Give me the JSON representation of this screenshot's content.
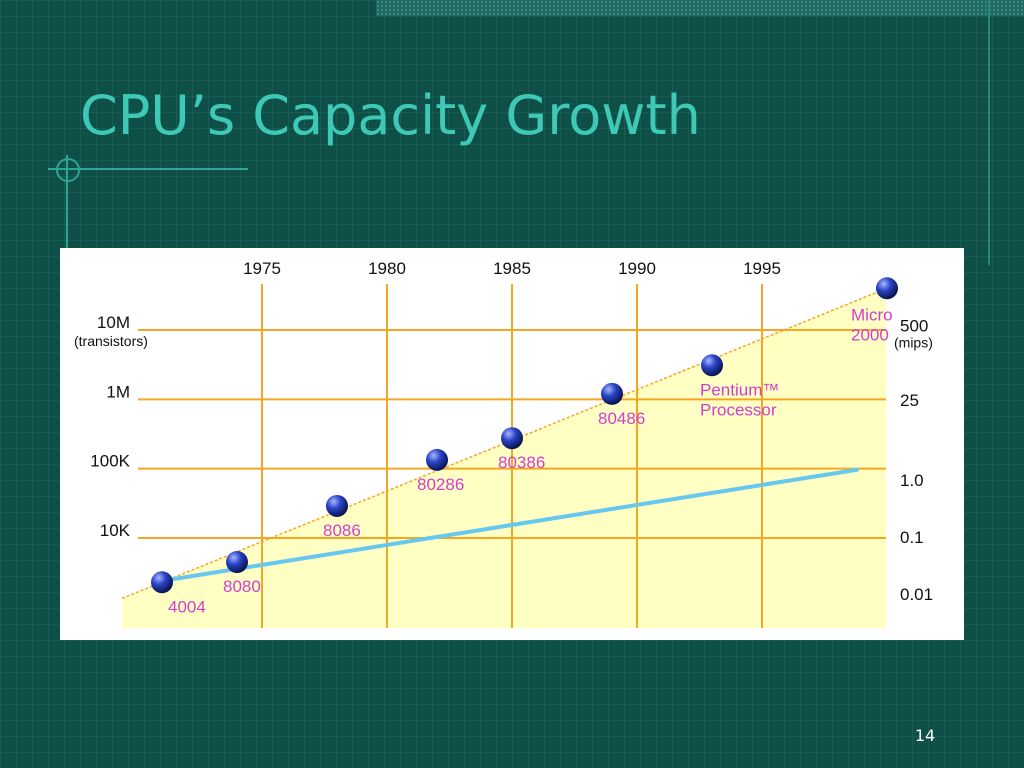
{
  "slide": {
    "title": "CPU’s Capacity Growth",
    "page_number": "14"
  },
  "colors": {
    "background": "#0e4f47",
    "title": "#3dc9b6",
    "grid": "#f5a623",
    "trend_line": "#66c8ee",
    "area_fill": "#ffffc4",
    "point_label": "#d23fd0",
    "point": "#2a44c8"
  },
  "chart_data": {
    "type": "scatter",
    "title": "",
    "x_ticks": [
      "1975",
      "1980",
      "1985",
      "1990",
      "1995"
    ],
    "x_tick_values": [
      1975,
      1980,
      1985,
      1990,
      1995
    ],
    "xlim": [
      1970,
      2000
    ],
    "left_axis": {
      "label": "(transistors)",
      "scale": "log",
      "ticks": [
        "10M",
        "1M",
        "100K",
        "10K"
      ],
      "tick_values": [
        10000000,
        1000000,
        100000,
        10000
      ]
    },
    "right_axis": {
      "label": "(mips)",
      "scale": "log",
      "ticks": [
        "500",
        "25",
        "1.0",
        "0.1",
        "0.01"
      ],
      "tick_values": [
        500,
        25,
        1.0,
        0.1,
        0.01
      ]
    },
    "grid": true,
    "series": [
      {
        "role": "transistors",
        "points": [
          {
            "label": "4004",
            "x": 1971,
            "y": 2300
          },
          {
            "label": "8080",
            "x": 1974,
            "y": 4500
          },
          {
            "label": "8086",
            "x": 1978,
            "y": 29000
          },
          {
            "label": "80286",
            "x": 1982,
            "y": 134000
          },
          {
            "label": "80386",
            "x": 1985,
            "y": 275000
          },
          {
            "label": "80486",
            "x": 1989,
            "y": 1200000
          },
          {
            "label": "Pentium™ Processor",
            "label_lines": [
              "Pentium™",
              "Processor"
            ],
            "x": 1993,
            "y": 3100000
          },
          {
            "label": "Micro 2000",
            "label_lines": [
              "Micro",
              "2000"
            ],
            "x": 2000,
            "y": 40000000
          }
        ]
      },
      {
        "role": "mips",
        "type": "line",
        "points": [
          {
            "x": 1970,
            "y": 0.016
          },
          {
            "x": 2000,
            "y": 1.5
          }
        ]
      }
    ]
  }
}
